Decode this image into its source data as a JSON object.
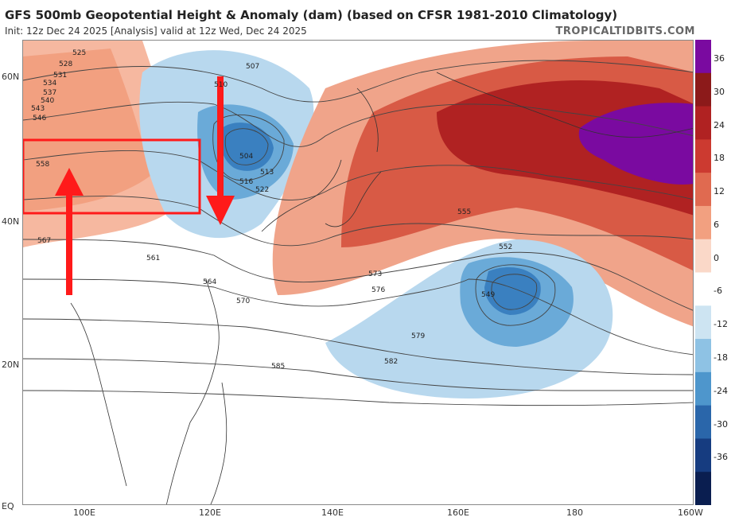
{
  "header": {
    "title": "GFS 500mb Geopotential Height & Anomaly (dam) (based on CFSR 1981-2010 Climatology)",
    "subtitle": "Init: 12z Dec 24 2025   [Analysis]   valid at 12z Wed, Dec 24 2025",
    "brand": "TROPICALTIDBITS.COM"
  },
  "axes": {
    "lat_labels": [
      "60N",
      "40N",
      "20N",
      "EQ"
    ],
    "lon_labels": [
      "100E",
      "120E",
      "140E",
      "160E",
      "180",
      "160W"
    ]
  },
  "colorbar": {
    "labels": [
      "36",
      "30",
      "24",
      "18",
      "12",
      "6",
      "0",
      "-6",
      "-12",
      "-18",
      "-24",
      "-30",
      "-36"
    ],
    "colors": [
      "#7a0aa0",
      "#8c1a1a",
      "#b02222",
      "#cc3a30",
      "#e06a50",
      "#f2a080",
      "#fad8c8",
      "#ffffff",
      "#cde4f2",
      "#8ec2e4",
      "#4e96cc",
      "#2a66aa",
      "#163c80",
      "#0a1e50"
    ]
  },
  "contours": [
    "507",
    "510",
    "504",
    "513",
    "516",
    "522",
    "525",
    "528",
    "531",
    "534",
    "537",
    "540",
    "543",
    "546",
    "549",
    "552",
    "555",
    "558",
    "561",
    "564",
    "567",
    "570",
    "573",
    "576",
    "579",
    "582",
    "585"
  ]
}
